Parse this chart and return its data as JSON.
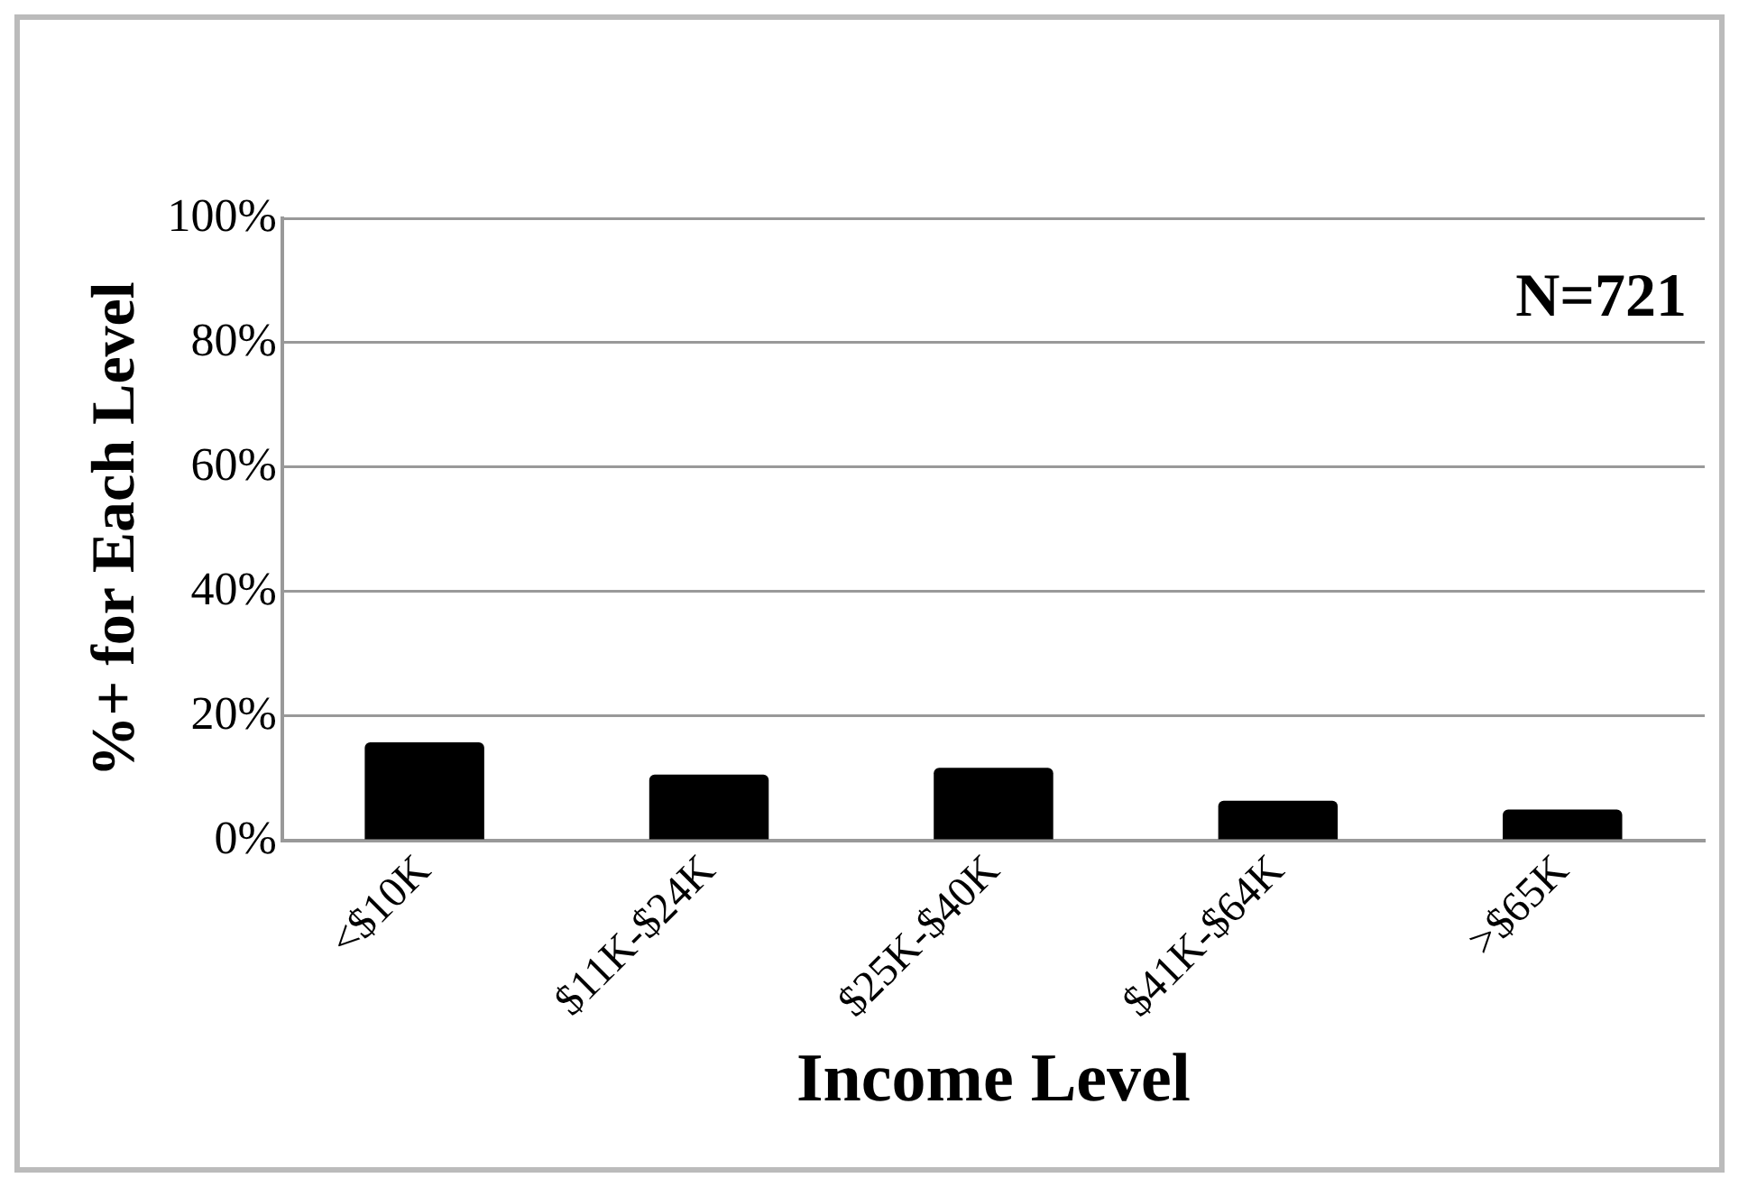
{
  "chart_data": {
    "type": "bar",
    "xlabel": "Income Level",
    "ylabel": "%+ for Each Level",
    "categories": [
      "<$10K",
      "$11K-$24K",
      "$25K-$40K",
      "$41K-$64K",
      ">$65K"
    ],
    "values": [
      15.8,
      10.6,
      11.7,
      6.4,
      5.0
    ],
    "color": "#000000",
    "ylim": [
      0,
      100
    ],
    "yticks": [
      {
        "value": 0,
        "label": "0%"
      },
      {
        "value": 20,
        "label": "20%"
      },
      {
        "value": 40,
        "label": "40%"
      },
      {
        "value": 60,
        "label": "60%"
      },
      {
        "value": 80,
        "label": "80%"
      },
      {
        "value": 100,
        "label": "100%"
      }
    ],
    "grid": "y",
    "legend": false,
    "annotations": [
      "N=721"
    ]
  }
}
